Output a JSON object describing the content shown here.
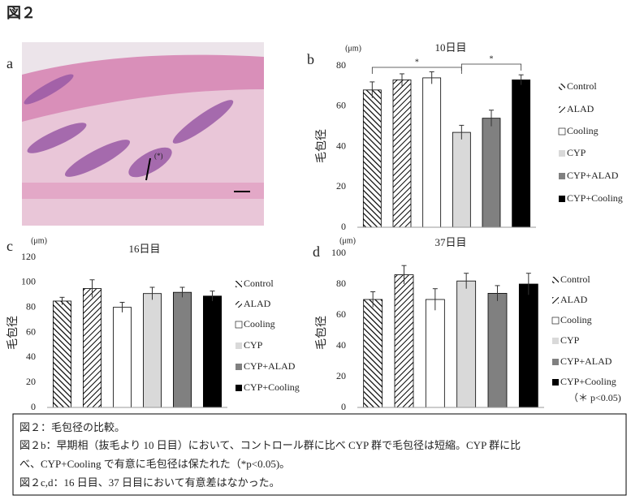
{
  "figure_title": "図２",
  "panel_a": {
    "label": "a",
    "annotation": "(*)"
  },
  "chart_data": [
    {
      "type": "bar",
      "label": "b",
      "title": "10日目",
      "unit": "(μm)",
      "y_label": "毛包径",
      "categories": [
        "Control",
        "ALAD",
        "Cooling",
        "CYP",
        "CYP+ALAD",
        "CYP+Cooling"
      ],
      "values": [
        68,
        73,
        74,
        47,
        54,
        73
      ],
      "errors": [
        4,
        3,
        3,
        3.5,
        4,
        2.5
      ],
      "fills": [
        "backslash-hatch",
        "slash-hatch",
        "#ffffff",
        "#d9d9d9",
        "#808080",
        "#000000"
      ],
      "ylim": [
        0,
        80
      ],
      "yticks": [
        0,
        20,
        40,
        60,
        80
      ],
      "significance": [
        {
          "from": 0,
          "to": 3,
          "label": "*"
        },
        {
          "from": 3,
          "to": 5,
          "label": "*"
        }
      ]
    },
    {
      "type": "bar",
      "label": "c",
      "title": "16日目",
      "unit": "(μm)",
      "y_label": "毛包径",
      "categories": [
        "Control",
        "ALAD",
        "Cooling",
        "CYP",
        "CYP+ALAD",
        "CYP+Cooling"
      ],
      "values": [
        85,
        95,
        80,
        91,
        92,
        89
      ],
      "errors": [
        3,
        7,
        4,
        5,
        4,
        4
      ],
      "fills": [
        "backslash-hatch",
        "slash-hatch",
        "#ffffff",
        "#d9d9d9",
        "#808080",
        "#000000"
      ],
      "ylim": [
        0,
        120
      ],
      "yticks": [
        0,
        20,
        40,
        60,
        80,
        100,
        120
      ]
    },
    {
      "type": "bar",
      "label": "d",
      "title": "37日目",
      "unit": "(μm)",
      "y_label": "毛包径",
      "categories": [
        "Control",
        "ALAD",
        "Cooling",
        "CYP",
        "CYP+ALAD",
        "CYP+Cooling"
      ],
      "values": [
        70,
        86,
        70,
        82,
        74,
        80
      ],
      "errors": [
        5,
        6,
        7,
        5,
        5,
        7
      ],
      "fills": [
        "backslash-hatch",
        "slash-hatch",
        "#ffffff",
        "#d9d9d9",
        "#808080",
        "#000000"
      ],
      "ylim": [
        0,
        100
      ],
      "yticks": [
        0,
        20,
        40,
        60,
        80,
        100
      ],
      "note": "（＊ p<0.05)"
    }
  ],
  "caption": [
    "図２：毛包径の比較。",
    "図２b：早期相（抜毛より 10 日目）において、コントロール群に比べ CYP 群で毛包径は短縮。CYP 群に比",
    "べ、CYP+Cooling で有意に毛包径は保たれた（*p<0.05)。",
    "図２c,d：16 日目、37 日目において有意差はなかった。"
  ]
}
